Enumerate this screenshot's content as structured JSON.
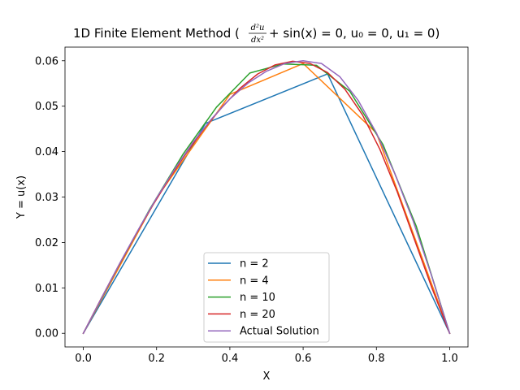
{
  "chart_data": {
    "type": "line",
    "title": "1D Finite Element Method (d²u/dx² + sin(x) = 0, u₀ = 0, u₁ = 0)",
    "xlabel": "X",
    "ylabel": "Y = u(x)",
    "xlim": [
      -0.05,
      1.05
    ],
    "ylim": [
      -0.003,
      0.063
    ],
    "xticks": [
      0.0,
      0.2,
      0.4,
      0.6,
      0.8,
      1.0
    ],
    "xtick_labels": [
      "0.0",
      "0.2",
      "0.4",
      "0.6",
      "0.8",
      "1.0"
    ],
    "yticks": [
      0.0,
      0.01,
      0.02,
      0.03,
      0.04,
      0.05,
      0.06
    ],
    "ytick_labels": [
      "0.00",
      "0.01",
      "0.02",
      "0.03",
      "0.04",
      "0.05",
      "0.06"
    ],
    "grid": false,
    "legend_position": "bottom-center",
    "series": [
      {
        "name": "n = 2",
        "color": "#1f77b4",
        "x": [
          0.0,
          0.3333,
          0.6667,
          1.0
        ],
        "y": [
          0.0,
          0.0462,
          0.0571,
          0.0
        ]
      },
      {
        "name": "n = 4",
        "color": "#ff7f0e",
        "x": [
          0.0,
          0.2,
          0.4,
          0.6,
          0.8,
          1.0
        ],
        "y": [
          0.0,
          0.0298,
          0.0526,
          0.0594,
          0.0441,
          0.0
        ]
      },
      {
        "name": "n = 10",
        "color": "#2ca02c",
        "x": [
          0.0,
          0.0909,
          0.1818,
          0.2727,
          0.3636,
          0.4545,
          0.5455,
          0.6364,
          0.7273,
          0.8182,
          0.9091,
          1.0
        ],
        "y": [
          0.0,
          0.014,
          0.0274,
          0.0395,
          0.0498,
          0.0573,
          0.0593,
          0.059,
          0.0533,
          0.0415,
          0.0235,
          0.0
        ]
      },
      {
        "name": "n = 20",
        "color": "#d62728",
        "x": [
          0.0,
          0.0476,
          0.0952,
          0.1429,
          0.1905,
          0.2381,
          0.2857,
          0.3333,
          0.381,
          0.4286,
          0.4762,
          0.5238,
          0.5714,
          0.619,
          0.6667,
          0.7143,
          0.7619,
          0.8095,
          0.8571,
          0.9048,
          0.9524,
          1.0
        ],
        "y": [
          0.0,
          0.0075,
          0.0147,
          0.0217,
          0.0283,
          0.0345,
          0.0402,
          0.0454,
          0.05,
          0.054,
          0.0571,
          0.0591,
          0.0599,
          0.0594,
          0.0574,
          0.0537,
          0.0481,
          0.0405,
          0.0311,
          0.0204,
          0.0098,
          0.0
        ]
      },
      {
        "name": "Actual Solution",
        "color": "#9467bd",
        "x": [
          0.0,
          0.05,
          0.1,
          0.15,
          0.2,
          0.25,
          0.3,
          0.35,
          0.4,
          0.45,
          0.5,
          0.55,
          0.6,
          0.65,
          0.7,
          0.75,
          0.8,
          0.85,
          0.9,
          0.95,
          1.0
        ],
        "y": [
          0.0,
          0.0078,
          0.0155,
          0.0228,
          0.0298,
          0.0362,
          0.0421,
          0.0472,
          0.0516,
          0.0551,
          0.0577,
          0.0594,
          0.06,
          0.0594,
          0.0565,
          0.0513,
          0.0441,
          0.0352,
          0.0248,
          0.0128,
          0.0
        ]
      }
    ]
  }
}
